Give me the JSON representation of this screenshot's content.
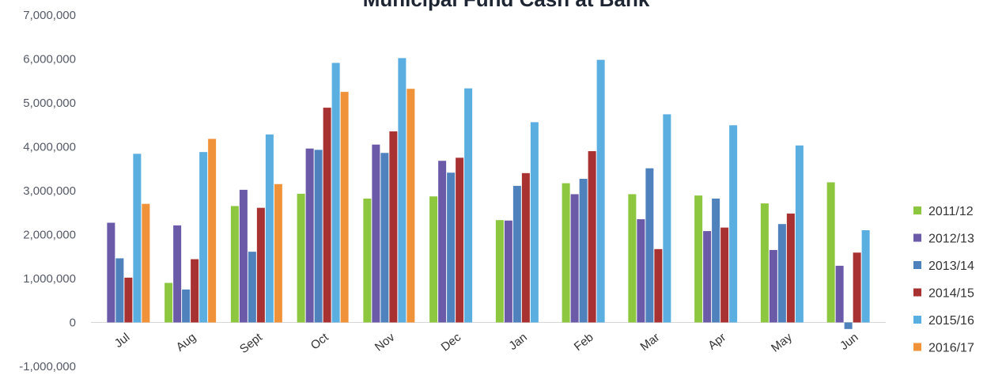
{
  "chart_data": {
    "type": "bar",
    "title": "Municipal Fund Cash at Bank",
    "xlabel": "",
    "ylabel": "",
    "categories": [
      "Jul",
      "Aug",
      "Sept",
      "Oct",
      "Nov",
      "Dec",
      "Jan",
      "Feb",
      "Mar",
      "Apr",
      "May",
      "Jun"
    ],
    "ylim": [
      -1000000,
      7000000
    ],
    "yticks": [
      -1000000,
      0,
      1000000,
      2000000,
      3000000,
      4000000,
      5000000,
      6000000,
      7000000
    ],
    "ytick_labels": [
      "-1,000,000",
      "0",
      "1,000,000",
      "2,000,000",
      "3,000,000",
      "4,000,000",
      "5,000,000",
      "6,000,000",
      "7,000,000"
    ],
    "grid": false,
    "legend_position": "right",
    "series": [
      {
        "name": "2011/12",
        "color": "#8dc63f",
        "values": [
          null,
          900000,
          2650000,
          2930000,
          2820000,
          2870000,
          2330000,
          3170000,
          2920000,
          2890000,
          2710000,
          3190000
        ]
      },
      {
        "name": "2012/13",
        "color": "#6a5aa8",
        "values": [
          2270000,
          2210000,
          3020000,
          3960000,
          4050000,
          3680000,
          2320000,
          2920000,
          2350000,
          2080000,
          1650000,
          1290000
        ]
      },
      {
        "name": "2013/14",
        "color": "#4f81bd",
        "values": [
          1460000,
          750000,
          1610000,
          3930000,
          3860000,
          3410000,
          3110000,
          3270000,
          3510000,
          2820000,
          2240000,
          -150000
        ]
      },
      {
        "name": "2014/15",
        "color": "#a83232",
        "values": [
          1020000,
          1440000,
          2610000,
          4890000,
          4350000,
          3750000,
          3400000,
          3900000,
          1670000,
          2160000,
          2480000,
          1590000
        ]
      },
      {
        "name": "2015/16",
        "color": "#5aaee0",
        "values": [
          3840000,
          3880000,
          4280000,
          5910000,
          6020000,
          5330000,
          4560000,
          5980000,
          4740000,
          4490000,
          4030000,
          2100000
        ]
      },
      {
        "name": "2016/17",
        "color": "#f0923a",
        "values": [
          2700000,
          4180000,
          3150000,
          5250000,
          5320000,
          null,
          null,
          null,
          null,
          null,
          null,
          null
        ]
      }
    ]
  }
}
